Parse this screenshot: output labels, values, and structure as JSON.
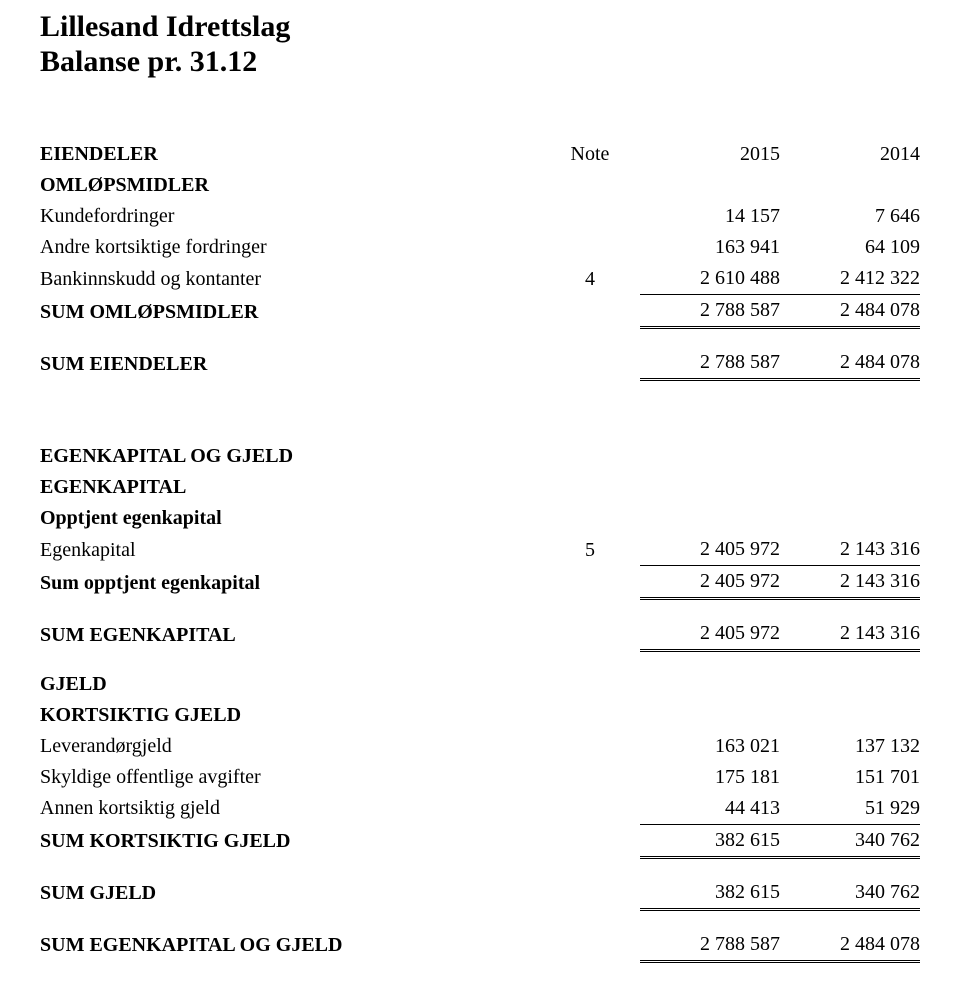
{
  "title": {
    "line1": "Lillesand Idrettslag",
    "line2": "Balanse pr. 31.12"
  },
  "header": {
    "assets": "EIENDELER",
    "noteLabel": "Note",
    "year1": "2015",
    "year2": "2014"
  },
  "assets": {
    "omlops": {
      "heading": "OMLØPSMIDLER",
      "rows": [
        {
          "label": "Kundefordringer",
          "note": "",
          "y1": "14 157",
          "y2": "7 646"
        },
        {
          "label": "Andre kortsiktige fordringer",
          "note": "",
          "y1": "163 941",
          "y2": "64 109"
        },
        {
          "label": "Bankinnskudd og kontanter",
          "note": "4",
          "y1": "2 610 488",
          "y2": "2 412 322"
        }
      ],
      "sum": {
        "label": "SUM OMLØPSMIDLER",
        "y1": "2 788 587",
        "y2": "2 484 078"
      }
    },
    "sumEiendeler": {
      "label": "SUM EIENDELER",
      "y1": "2 788 587",
      "y2": "2 484 078"
    }
  },
  "ekgjeld": {
    "heading": "EGENKAPITAL OG GJELD",
    "ek": {
      "heading": "EGENKAPITAL",
      "opptjent": {
        "heading": "Opptjent egenkapital",
        "row": {
          "label": "Egenkapital",
          "note": "5",
          "y1": "2 405 972",
          "y2": "2 143 316"
        },
        "sum": {
          "label": "Sum opptjent egenkapital",
          "y1": "2 405 972",
          "y2": "2 143 316"
        }
      },
      "sum": {
        "label": "SUM EGENKAPITAL",
        "y1": "2 405 972",
        "y2": "2 143 316"
      }
    },
    "gjeld": {
      "heading": "GJELD",
      "kortsiktig": {
        "heading": "KORTSIKTIG GJELD",
        "rows": [
          {
            "label": "Leverandørgjeld",
            "y1": "163 021",
            "y2": "137 132"
          },
          {
            "label": "Skyldige offentlige avgifter",
            "y1": "175 181",
            "y2": "151 701"
          },
          {
            "label": "Annen kortsiktig gjeld",
            "y1": "44 413",
            "y2": "51 929"
          }
        ],
        "sum": {
          "label": "SUM KORTSIKTIG GJELD",
          "y1": "382 615",
          "y2": "340 762"
        }
      },
      "sum": {
        "label": "SUM GJELD",
        "y1": "382 615",
        "y2": "340 762"
      }
    },
    "sum": {
      "label": "SUM EGENKAPITAL OG GJELD",
      "y1": "2 788 587",
      "y2": "2 484 078"
    }
  }
}
